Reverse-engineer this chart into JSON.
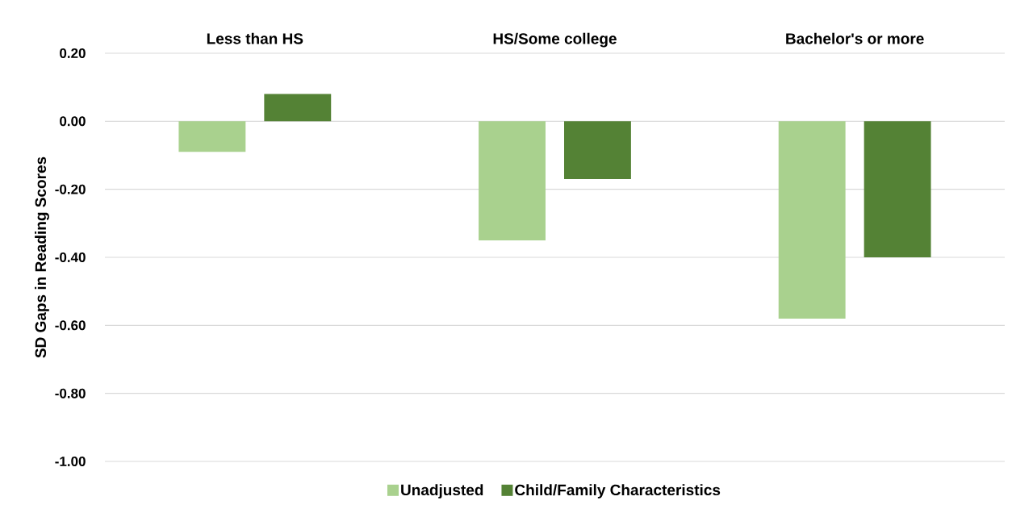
{
  "chart_data": {
    "type": "bar",
    "ylabel": "SD Gaps in Reading Scores",
    "categories": [
      "Less than HS",
      "HS/Some college",
      "Bachelor's or more"
    ],
    "series": [
      {
        "name": "Unadjusted",
        "color": "#a9d18e",
        "values": [
          -0.09,
          -0.35,
          -0.58
        ]
      },
      {
        "name": "Child/Family Characteristics",
        "color": "#548235",
        "values": [
          0.08,
          -0.17,
          -0.4
        ]
      }
    ],
    "ylim": [
      -1.0,
      0.2
    ],
    "yticks": [
      {
        "value": -1.0,
        "label": "-1.00"
      },
      {
        "value": -0.8,
        "label": "-0.80"
      },
      {
        "value": -0.6,
        "label": "-0.60"
      },
      {
        "value": -0.4,
        "label": "-0.40"
      },
      {
        "value": -0.2,
        "label": "-0.20"
      },
      {
        "value": 0,
        "label": "0.00"
      },
      {
        "value": 0.2,
        "label": "0.20"
      }
    ],
    "grid": "y",
    "legend": "bottom"
  }
}
